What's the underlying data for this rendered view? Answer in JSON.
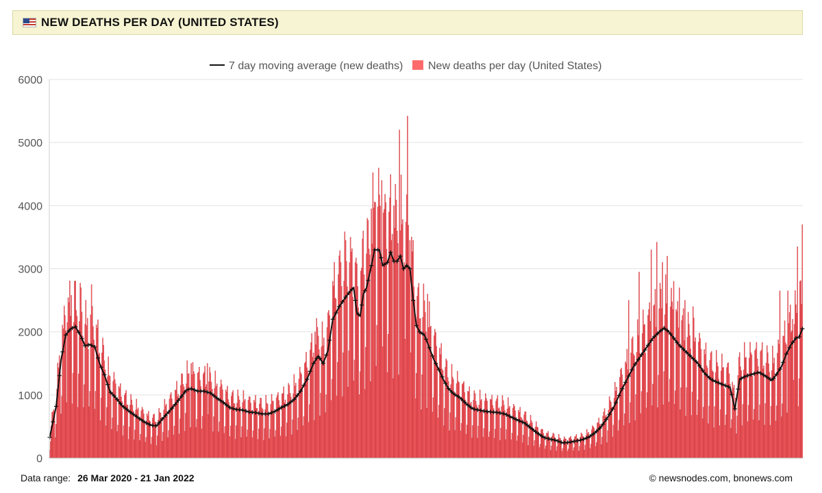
{
  "header": {
    "flag_icon": "us-flag-icon",
    "title": "NEW DEATHS PER DAY (UNITED STATES)"
  },
  "chart_data": {
    "type": "bar",
    "title": "NEW DEATHS PER DAY (UNITED STATES)",
    "xlabel": "",
    "ylabel": "",
    "ylim": [
      0,
      6000
    ],
    "yticks": [
      0,
      1000,
      2000,
      3000,
      4000,
      5000,
      6000
    ],
    "grid": true,
    "legend": "top-center",
    "colors": {
      "bars": "#ff6b6b",
      "bar_edge": "#b81c28",
      "line": "#111111",
      "grid": "#e3e3e3"
    },
    "date_range": {
      "start": "26 Mar 2020",
      "end": "21 Jan 2022"
    },
    "series": [
      {
        "name": "7 day moving average (new deaths)",
        "type": "line"
      },
      {
        "name": "New deaths per day (United States)",
        "type": "bar"
      }
    ],
    "moving_average_keypoints": [
      [
        0,
        330
      ],
      [
        8,
        820
      ],
      [
        14,
        1550
      ],
      [
        20,
        1950
      ],
      [
        26,
        2050
      ],
      [
        32,
        2080
      ],
      [
        38,
        1950
      ],
      [
        44,
        1780
      ],
      [
        50,
        1800
      ],
      [
        56,
        1760
      ],
      [
        62,
        1500
      ],
      [
        68,
        1320
      ],
      [
        75,
        1050
      ],
      [
        82,
        960
      ],
      [
        90,
        830
      ],
      [
        100,
        730
      ],
      [
        110,
        640
      ],
      [
        118,
        570
      ],
      [
        126,
        520
      ],
      [
        133,
        510
      ],
      [
        140,
        620
      ],
      [
        148,
        730
      ],
      [
        156,
        850
      ],
      [
        164,
        980
      ],
      [
        170,
        1080
      ],
      [
        176,
        1100
      ],
      [
        184,
        1060
      ],
      [
        192,
        1060
      ],
      [
        200,
        1030
      ],
      [
        208,
        950
      ],
      [
        216,
        880
      ],
      [
        224,
        800
      ],
      [
        232,
        770
      ],
      [
        240,
        760
      ],
      [
        248,
        730
      ],
      [
        256,
        720
      ],
      [
        264,
        700
      ],
      [
        272,
        700
      ],
      [
        280,
        740
      ],
      [
        288,
        800
      ],
      [
        296,
        850
      ],
      [
        304,
        930
      ],
      [
        312,
        1060
      ],
      [
        320,
        1250
      ],
      [
        328,
        1500
      ],
      [
        334,
        1620
      ],
      [
        340,
        1500
      ],
      [
        346,
        1700
      ],
      [
        352,
        2200
      ],
      [
        360,
        2400
      ],
      [
        368,
        2550
      ],
      [
        374,
        2650
      ],
      [
        378,
        2700
      ],
      [
        382,
        2300
      ],
      [
        386,
        2250
      ],
      [
        390,
        2600
      ],
      [
        394,
        2700
      ],
      [
        400,
        3050
      ],
      [
        404,
        3300
      ],
      [
        410,
        3300
      ],
      [
        414,
        3050
      ],
      [
        420,
        3100
      ],
      [
        424,
        3260
      ],
      [
        428,
        3120
      ],
      [
        432,
        3120
      ],
      [
        436,
        3200
      ],
      [
        440,
        3000
      ],
      [
        444,
        3050
      ],
      [
        448,
        3000
      ],
      [
        452,
        2500
      ],
      [
        456,
        2100
      ],
      [
        460,
        2000
      ],
      [
        466,
        1950
      ],
      [
        472,
        1750
      ],
      [
        478,
        1550
      ],
      [
        484,
        1400
      ],
      [
        490,
        1230
      ],
      [
        496,
        1100
      ],
      [
        502,
        1020
      ],
      [
        510,
        960
      ],
      [
        518,
        860
      ],
      [
        526,
        780
      ],
      [
        534,
        760
      ],
      [
        542,
        740
      ],
      [
        550,
        730
      ],
      [
        558,
        720
      ],
      [
        566,
        700
      ],
      [
        574,
        650
      ],
      [
        582,
        600
      ],
      [
        590,
        560
      ],
      [
        598,
        480
      ],
      [
        606,
        400
      ],
      [
        614,
        330
      ],
      [
        622,
        300
      ],
      [
        630,
        280
      ],
      [
        638,
        240
      ],
      [
        646,
        250
      ],
      [
        654,
        270
      ],
      [
        662,
        290
      ],
      [
        670,
        330
      ],
      [
        678,
        400
      ],
      [
        686,
        500
      ],
      [
        694,
        650
      ],
      [
        702,
        820
      ],
      [
        710,
        1050
      ],
      [
        718,
        1250
      ],
      [
        726,
        1450
      ],
      [
        734,
        1600
      ],
      [
        742,
        1750
      ],
      [
        750,
        1900
      ],
      [
        758,
        2000
      ],
      [
        764,
        2060
      ],
      [
        770,
        2000
      ],
      [
        776,
        1900
      ],
      [
        782,
        1800
      ],
      [
        790,
        1700
      ],
      [
        798,
        1600
      ],
      [
        806,
        1500
      ],
      [
        814,
        1350
      ],
      [
        822,
        1250
      ],
      [
        830,
        1200
      ],
      [
        838,
        1160
      ],
      [
        846,
        1120
      ],
      [
        852,
        780
      ],
      [
        858,
        1250
      ],
      [
        866,
        1300
      ],
      [
        874,
        1330
      ],
      [
        882,
        1360
      ],
      [
        890,
        1300
      ],
      [
        898,
        1230
      ],
      [
        904,
        1330
      ],
      [
        910,
        1450
      ],
      [
        916,
        1650
      ],
      [
        922,
        1800
      ],
      [
        928,
        1900
      ],
      [
        932,
        1920
      ],
      [
        936,
        2050
      ]
    ],
    "daily_peak_highlights": [
      [
        17,
        2050
      ],
      [
        22,
        2150
      ],
      [
        27,
        2580
      ],
      [
        30,
        2150
      ],
      [
        39,
        2700
      ],
      [
        46,
        2100
      ],
      [
        52,
        2750
      ],
      [
        176,
        1500
      ],
      [
        196,
        1500
      ],
      [
        330,
        2000
      ],
      [
        362,
        3100
      ],
      [
        368,
        3450
      ],
      [
        374,
        3500
      ],
      [
        380,
        3100
      ],
      [
        390,
        3600
      ],
      [
        395,
        3800
      ],
      [
        400,
        3950
      ],
      [
        405,
        4050
      ],
      [
        413,
        4400
      ],
      [
        418,
        4050
      ],
      [
        422,
        3900
      ],
      [
        428,
        4000
      ],
      [
        432,
        3600
      ],
      [
        435,
        5200
      ],
      [
        438,
        3700
      ],
      [
        441,
        3100
      ],
      [
        445,
        5420
      ],
      [
        448,
        3450
      ],
      [
        452,
        3450
      ],
      [
        470,
        2600
      ],
      [
        720,
        2500
      ],
      [
        733,
        2950
      ],
      [
        748,
        3300
      ],
      [
        755,
        3420
      ],
      [
        762,
        3100
      ],
      [
        768,
        3200
      ],
      [
        776,
        2800
      ],
      [
        783,
        2700
      ],
      [
        790,
        2500
      ],
      [
        800,
        2400
      ],
      [
        908,
        2650
      ],
      [
        918,
        2650
      ],
      [
        924,
        2200
      ],
      [
        930,
        3350
      ],
      [
        933,
        2800
      ],
      [
        936,
        3700
      ]
    ]
  },
  "footer": {
    "range_label": "Data range:",
    "range_value": "26 Mar 2020  -  21 Jan 2022",
    "credit": "©  newsnodes.com, bnonews.com"
  }
}
